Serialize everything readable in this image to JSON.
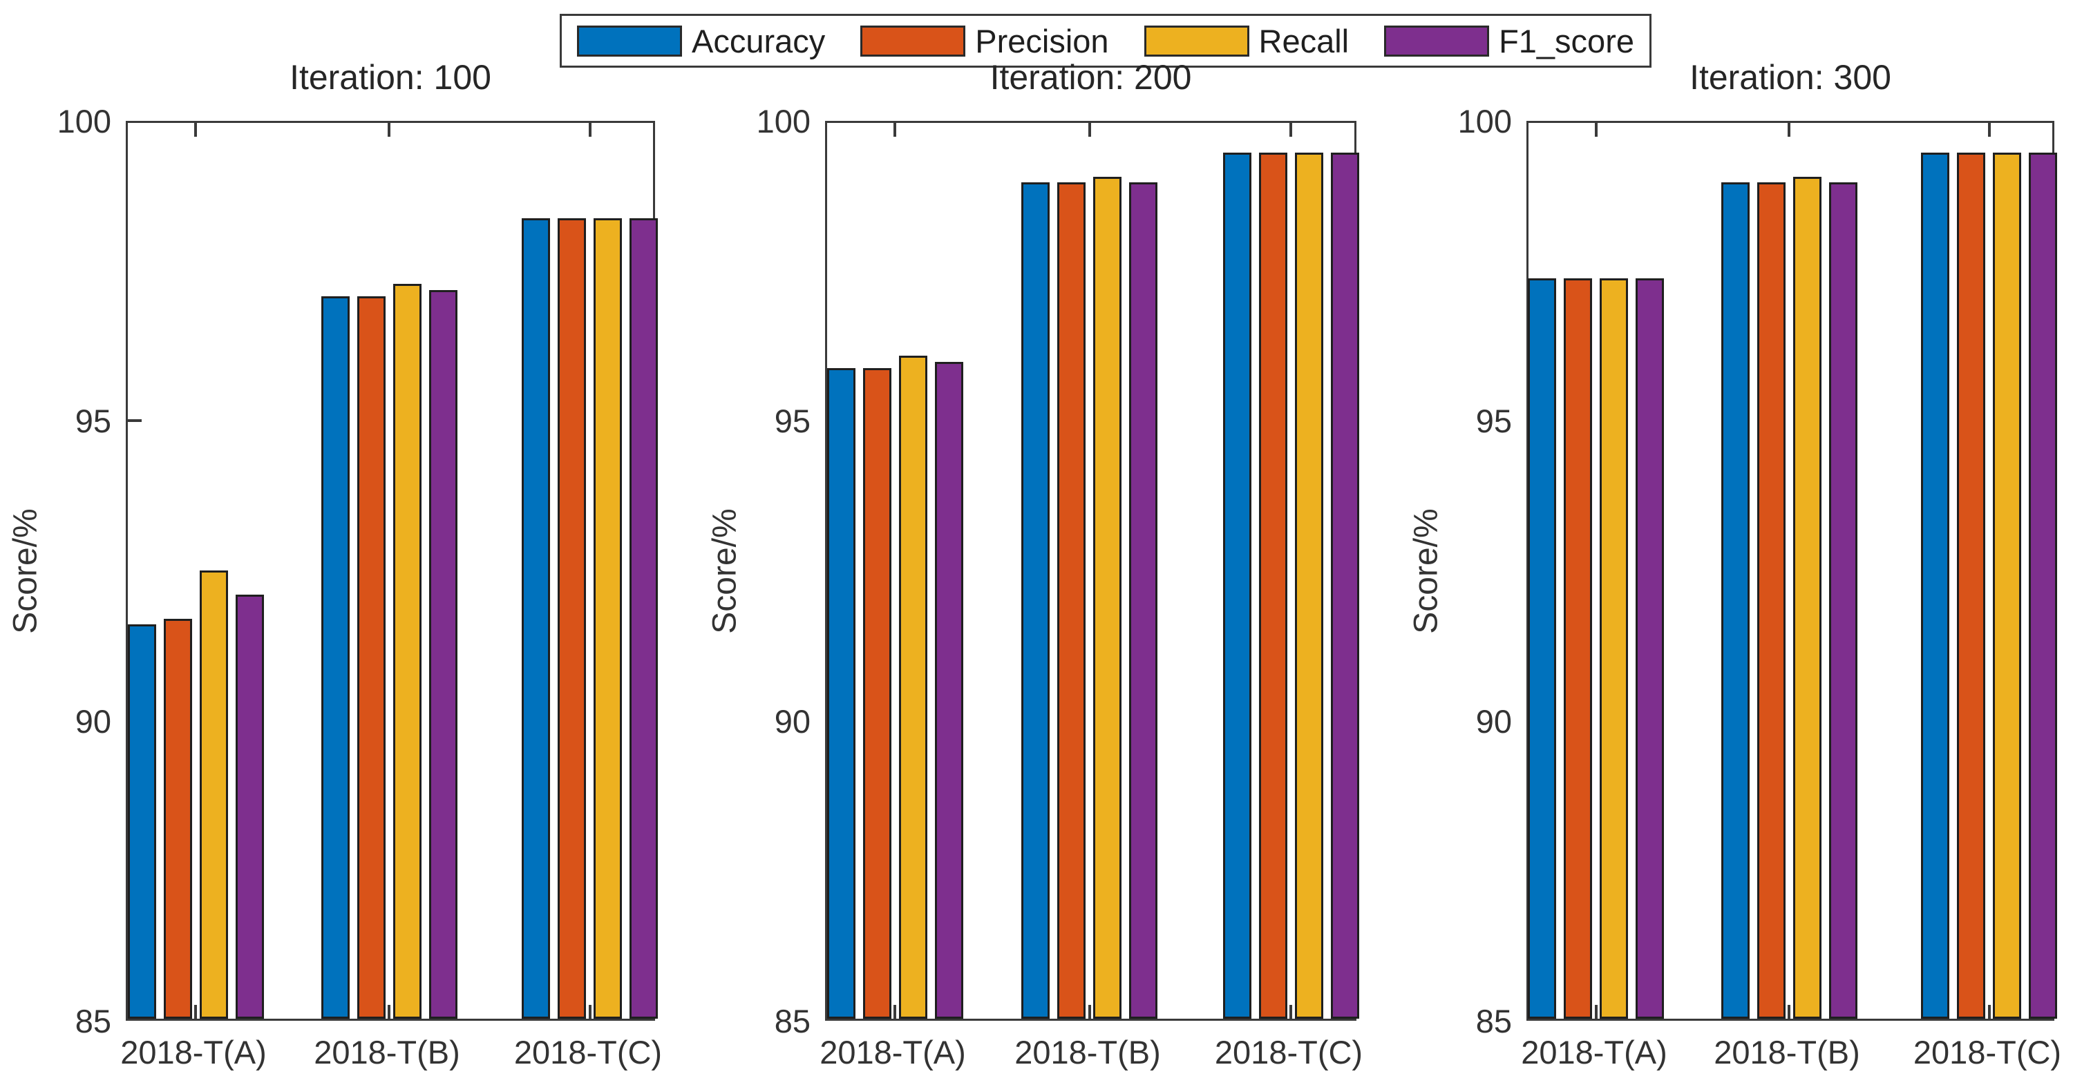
{
  "figure": {
    "background": "#ffffff",
    "axis_color": "#3a3a3a",
    "bar_edge_color": "#1f1f1f",
    "text_color": "#333333"
  },
  "legend": {
    "position": "top-center",
    "entries": [
      {
        "label": "Accuracy",
        "color": "#0072BD"
      },
      {
        "label": "Precision",
        "color": "#D95319"
      },
      {
        "label": "Recall",
        "color": "#EDB120"
      },
      {
        "label": "F1_score",
        "color": "#7E2F8E"
      }
    ]
  },
  "chart_data": {
    "type": "bar",
    "grouped": true,
    "categories": [
      "2018-T(A)",
      "2018-T(B)",
      "2018-T(C)"
    ],
    "ylabel": "Score/%",
    "ylim": [
      85,
      100
    ],
    "yticks": [
      85,
      90,
      95,
      100
    ],
    "grid": false,
    "legend_position": "top-center",
    "subplots": [
      {
        "title": "Iteration: 100",
        "series": [
          {
            "name": "Accuracy",
            "values": [
              91.6,
              97.1,
              98.4
            ]
          },
          {
            "name": "Precision",
            "values": [
              91.7,
              97.1,
              98.4
            ]
          },
          {
            "name": "Recall",
            "values": [
              92.5,
              97.3,
              98.4
            ]
          },
          {
            "name": "F1_score",
            "values": [
              92.1,
              97.2,
              98.4
            ]
          }
        ]
      },
      {
        "title": "Iteration: 200",
        "series": [
          {
            "name": "Accuracy",
            "values": [
              95.9,
              99.0,
              99.5
            ]
          },
          {
            "name": "Precision",
            "values": [
              95.9,
              99.0,
              99.5
            ]
          },
          {
            "name": "Recall",
            "values": [
              96.1,
              99.1,
              99.5
            ]
          },
          {
            "name": "F1_score",
            "values": [
              96.0,
              99.0,
              99.5
            ]
          }
        ]
      },
      {
        "title": "Iteration: 300",
        "series": [
          {
            "name": "Accuracy",
            "values": [
              97.4,
              99.0,
              99.5
            ]
          },
          {
            "name": "Precision",
            "values": [
              97.4,
              99.0,
              99.5
            ]
          },
          {
            "name": "Recall",
            "values": [
              97.4,
              99.1,
              99.5
            ]
          },
          {
            "name": "F1_score",
            "values": [
              97.4,
              99.0,
              99.5
            ]
          }
        ]
      }
    ]
  }
}
